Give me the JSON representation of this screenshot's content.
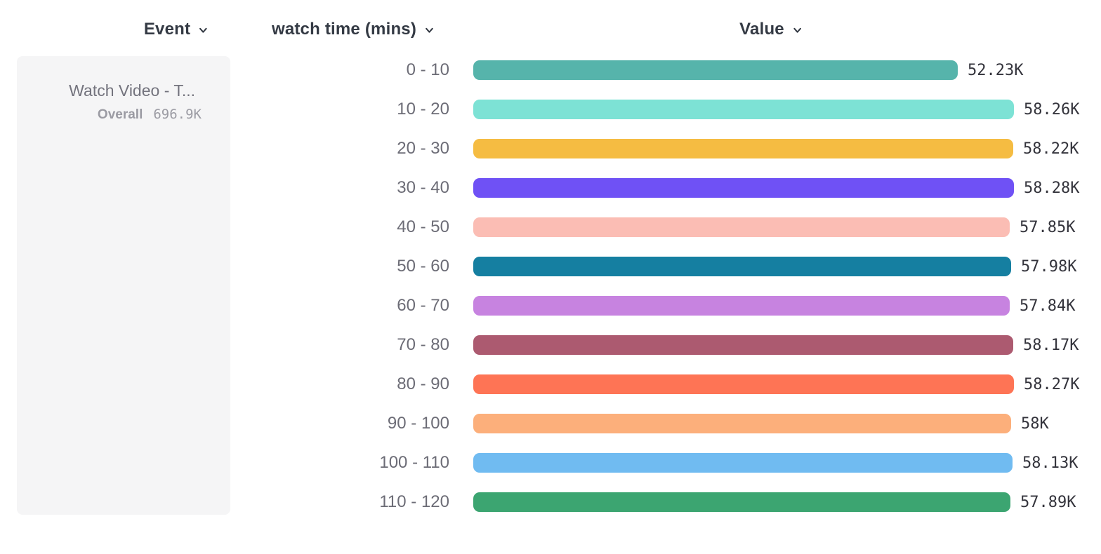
{
  "header": {
    "event_label": "Event",
    "breakdown_label": "watch time (mins)",
    "value_label": "Value"
  },
  "event_card": {
    "event_name": "Watch Video - T...",
    "overall_label": "Overall",
    "overall_value": "696.9K"
  },
  "chart_data": {
    "type": "bar",
    "orientation": "horizontal",
    "title": "",
    "xlabel": "Value",
    "ylabel": "watch time (mins)",
    "xlim": [
      0,
      58280
    ],
    "grid": false,
    "categories": [
      "0 - 10",
      "10 - 20",
      "20 - 30",
      "30 - 40",
      "40 - 50",
      "50 - 60",
      "60 - 70",
      "70 - 80",
      "80 - 90",
      "90 - 100",
      "100 - 110",
      "110 - 120"
    ],
    "values": [
      52230,
      58260,
      58220,
      58280,
      57850,
      57980,
      57840,
      58170,
      58270,
      58000,
      58130,
      57890
    ],
    "value_labels": [
      "52.23K",
      "58.26K",
      "58.22K",
      "58.28K",
      "57.85K",
      "57.98K",
      "57.84K",
      "58.17K",
      "58.27K",
      "58K",
      "58.13K",
      "57.89K"
    ],
    "bar_colors": [
      "#56b4ab",
      "#7de2d5",
      "#f5bc42",
      "#6f51f5",
      "#fbbdb4",
      "#157fa1",
      "#c783e0",
      "#ac5a70",
      "#fe7455",
      "#fcaf7b",
      "#70bbf1",
      "#3ca571"
    ],
    "overall_total_label": "696.9K",
    "legend_position": "left"
  },
  "icons": {
    "chevron_down": "chevron-down"
  }
}
